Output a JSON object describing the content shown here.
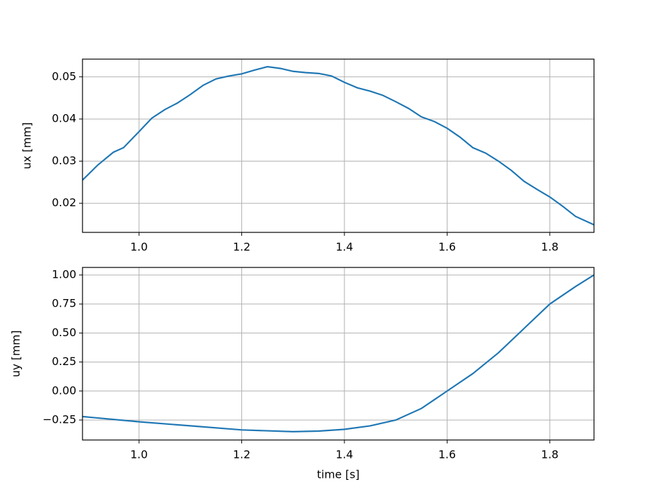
{
  "chart_data": [
    {
      "type": "line",
      "ylabel": "ux [mm]",
      "x": [
        0.89,
        0.92,
        0.95,
        0.97,
        1.0,
        1.025,
        1.05,
        1.075,
        1.1,
        1.125,
        1.15,
        1.175,
        1.2,
        1.225,
        1.25,
        1.275,
        1.3,
        1.325,
        1.35,
        1.375,
        1.4,
        1.425,
        1.45,
        1.475,
        1.5,
        1.525,
        1.55,
        1.575,
        1.6,
        1.625,
        1.65,
        1.675,
        1.7,
        1.725,
        1.75,
        1.775,
        1.8,
        1.825,
        1.85,
        1.886
      ],
      "series": [
        {
          "color": "#1f77b4",
          "values": [
            0.0255,
            0.0291,
            0.0321,
            0.0332,
            0.037,
            0.0402,
            0.0422,
            0.0438,
            0.0458,
            0.048,
            0.0495,
            0.0502,
            0.0507,
            0.0516,
            0.0524,
            0.052,
            0.0513,
            0.051,
            0.0508,
            0.0502,
            0.0487,
            0.0474,
            0.0466,
            0.0456,
            0.0441,
            0.0425,
            0.0405,
            0.0394,
            0.0378,
            0.0357,
            0.0332,
            0.0319,
            0.03,
            0.0278,
            0.0252,
            0.0233,
            0.0215,
            0.0193,
            0.0169,
            0.0149
          ]
        }
      ],
      "xlim": [
        0.89,
        1.886
      ],
      "xticks": [
        {
          "value": 1,
          "label": "1.0"
        },
        1.2,
        1.4,
        1.6,
        1.8
      ],
      "ylim": [
        0.0131,
        0.0542
      ],
      "yticks": [
        0.02,
        0.03,
        0.04,
        0.05
      ],
      "grid": true
    },
    {
      "type": "line",
      "ylabel": "uy [mm]",
      "xlabel": "time [s]",
      "x": [
        0.89,
        1.0,
        1.1,
        1.2,
        1.3,
        1.35,
        1.4,
        1.45,
        1.5,
        1.55,
        1.6,
        1.65,
        1.7,
        1.75,
        1.8,
        1.85,
        1.886
      ],
      "series": [
        {
          "color": "#1f77b4",
          "values": [
            -0.22,
            -0.265,
            -0.3,
            -0.335,
            -0.35,
            -0.345,
            -0.33,
            -0.3,
            -0.25,
            -0.15,
            0.0,
            0.15,
            0.33,
            0.54,
            0.75,
            0.9,
            1.0
          ]
        }
      ],
      "xlim": [
        0.89,
        1.886
      ],
      "xticks": [
        {
          "value": 1,
          "label": "1.0"
        },
        1.2,
        1.4,
        1.6,
        1.8
      ],
      "ylim": [
        -0.422,
        1.065
      ],
      "yticks": [
        {
          "value": -0.25,
          "label": "−0.25"
        },
        {
          "value": 0,
          "label": "0.00"
        },
        0.25,
        {
          "value": 0.5,
          "label": "0.50"
        },
        0.75,
        {
          "value": 1,
          "label": "1.00"
        }
      ],
      "grid": true
    }
  ]
}
